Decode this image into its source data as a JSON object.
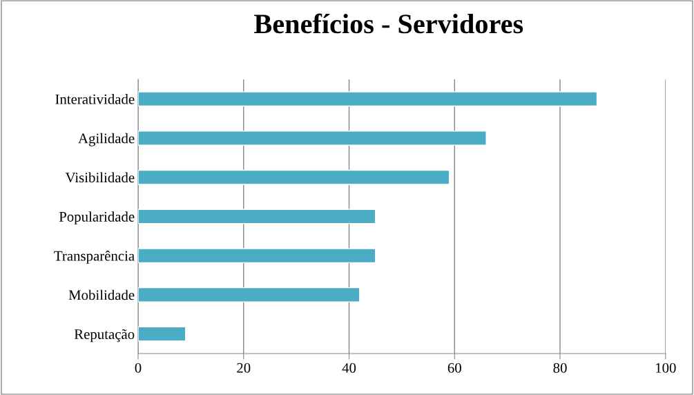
{
  "chart_data": {
    "type": "bar",
    "orientation": "horizontal",
    "title": "Benefícios - Servidores",
    "categories": [
      "Interatividade",
      "Agilidade",
      "Visibilidade",
      "Popularidade",
      "Transparência",
      "Mobilidade",
      "Reputação"
    ],
    "values": [
      87,
      66,
      59,
      45,
      45,
      42,
      9
    ],
    "color": "#4bacc6",
    "xlim": [
      0,
      100
    ],
    "xticks": [
      0,
      20,
      40,
      60,
      80,
      100
    ],
    "grid": "x",
    "legend": false
  }
}
